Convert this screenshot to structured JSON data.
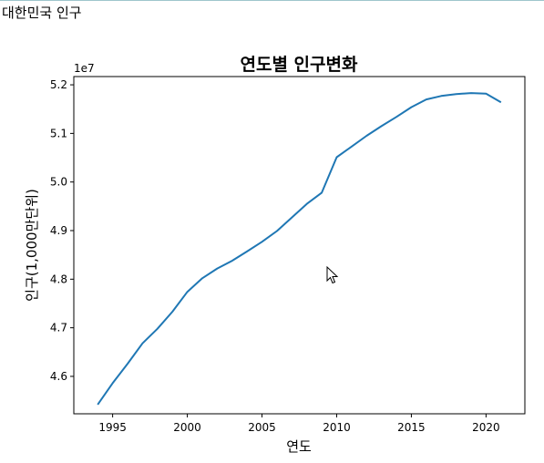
{
  "page": {
    "header": "대한민국 인구"
  },
  "chart_data": {
    "type": "line",
    "title": "연도별 인구변화",
    "xlabel": "연도",
    "ylabel": "인구(1,000만단위)",
    "y_offset_label": "1e7",
    "xlim": [
      1992.4,
      2022.6
    ],
    "ylim": [
      45.23,
      52.17
    ],
    "x_ticks": [
      1995,
      2000,
      2005,
      2010,
      2015,
      2020
    ],
    "y_ticks": [
      4.6,
      4.7,
      4.8,
      4.9,
      5.0,
      5.1,
      5.2
    ],
    "grid": false,
    "series": [
      {
        "color": "#1f77b4",
        "x": [
          1994,
          1995,
          1996,
          1997,
          1998,
          1999,
          2000,
          2001,
          2002,
          2003,
          2004,
          2005,
          2006,
          2007,
          2008,
          2009,
          2010,
          2011,
          2012,
          2013,
          2014,
          2015,
          2016,
          2017,
          2018,
          2019,
          2020,
          2021
        ],
        "y": [
          45.42,
          45.86,
          46.26,
          46.68,
          46.98,
          47.33,
          47.74,
          48.02,
          48.22,
          48.38,
          48.57,
          48.77,
          48.99,
          49.27,
          49.55,
          49.78,
          50.51,
          50.73,
          50.95,
          51.15,
          51.34,
          51.54,
          51.7,
          51.77,
          51.81,
          51.83,
          51.82,
          51.64
        ]
      }
    ]
  }
}
